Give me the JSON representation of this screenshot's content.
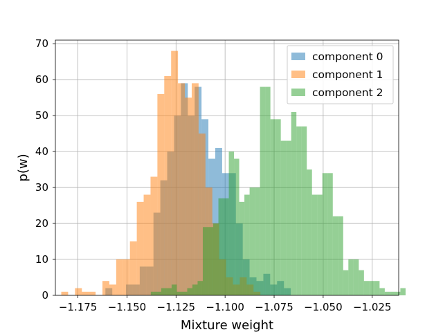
{
  "chart_data": {
    "type": "histogram",
    "xlabel": "Mixture weight",
    "ylabel": "p(w)",
    "xlim": [
      -1.1865,
      -1.0115
    ],
    "ylim": [
      0,
      71
    ],
    "xticks": [
      -1.175,
      -1.15,
      -1.125,
      -1.1,
      -1.075,
      -1.05,
      -1.025
    ],
    "xtick_labels": [
      "−1.175",
      "−1.150",
      "−1.125",
      "−1.100",
      "−1.075",
      "−1.050",
      "−1.025"
    ],
    "yticks": [
      0,
      10,
      20,
      30,
      40,
      50,
      60,
      70
    ],
    "ytick_labels": [
      "0",
      "10",
      "20",
      "30",
      "40",
      "50",
      "60",
      "70"
    ],
    "grid": true,
    "legend_position": "top-right",
    "series": [
      {
        "name": "component 0",
        "color": "#1f77b4",
        "alpha": 0.5,
        "bin_start": -1.161,
        "bin_width": 0.0035,
        "counts": [
          2,
          0,
          0,
          3,
          3,
          8,
          8,
          23,
          32,
          40,
          50,
          59,
          50,
          58,
          49,
          38,
          41,
          34,
          34,
          20,
          10,
          5,
          4,
          6,
          3,
          4,
          2
        ]
      },
      {
        "name": "component 1",
        "color": "#ff7f0e",
        "alpha": 0.5,
        "bin_start": -1.1835,
        "bin_width": 0.0035,
        "counts": [
          1,
          0,
          2,
          1,
          1,
          0,
          4,
          3,
          10,
          10,
          15,
          26,
          28,
          33,
          56,
          61,
          68,
          59,
          55,
          59,
          45,
          30,
          20,
          10,
          5,
          3,
          5,
          3,
          1
        ]
      },
      {
        "name": "component 2",
        "color": "#2ca02c",
        "alpha": 0.5,
        "bin_start": -1.1405,
        "bin_width": 0.00265,
        "counts": [
          0,
          1,
          1,
          2,
          2,
          3,
          1,
          1,
          2,
          3,
          4,
          19,
          19,
          20,
          27,
          27,
          40,
          38,
          26,
          28,
          30,
          30,
          58,
          58,
          49,
          49,
          43,
          43,
          51,
          47,
          47,
          35,
          28,
          28,
          34,
          34,
          22,
          22,
          7,
          10,
          10,
          7,
          4,
          4,
          4,
          2,
          1,
          1,
          1,
          2
        ]
      }
    ]
  }
}
